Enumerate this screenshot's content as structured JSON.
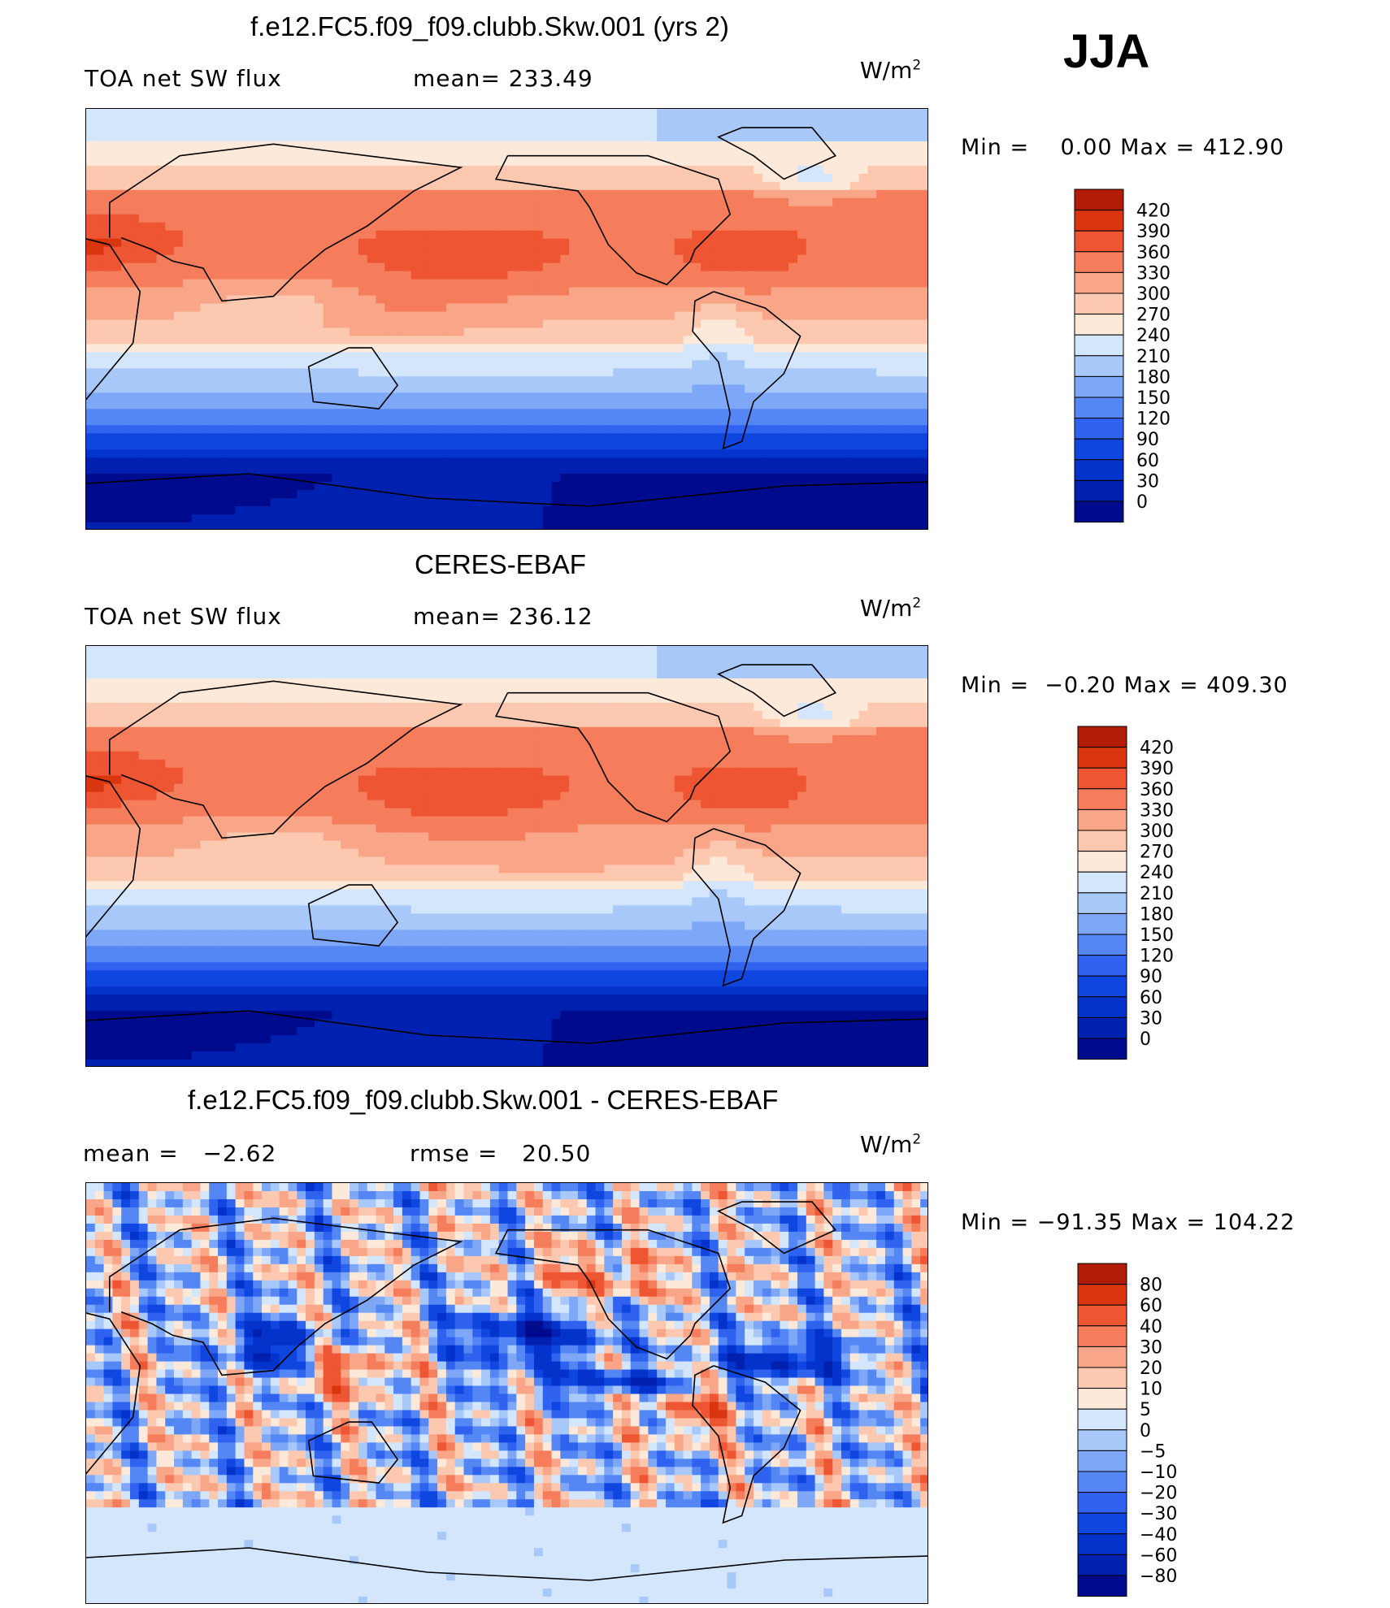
{
  "season": "JJA",
  "units": "W/m",
  "units_sup": "2",
  "panels": [
    {
      "title": "f.e12.FC5.f09_f09.clubb.Skw.001 (yrs 2)",
      "left_label": "TOA net SW flux",
      "center_label": "mean= 233.49",
      "minmax": "Min =    0.00 Max = 412.90",
      "colorbar_ticks": [
        "420",
        "390",
        "360",
        "330",
        "300",
        "270",
        "240",
        "210",
        "180",
        "150",
        "120",
        "90",
        "60",
        "30",
        "0"
      ]
    },
    {
      "title": "CERES-EBAF",
      "left_label": "TOA net SW flux",
      "center_label": "mean= 236.12",
      "minmax": "Min =  −0.20 Max = 409.30",
      "colorbar_ticks": [
        "420",
        "390",
        "360",
        "330",
        "300",
        "270",
        "240",
        "210",
        "180",
        "150",
        "120",
        "90",
        "60",
        "30",
        "0"
      ]
    },
    {
      "title": "f.e12.FC5.f09_f09.clubb.Skw.001 - CERES-EBAF",
      "left_label": "mean =   −2.62",
      "center_label": "rmse =   20.50",
      "minmax": "Min = −91.35 Max = 104.22",
      "colorbar_ticks": [
        "80",
        "60",
        "40",
        "30",
        "20",
        "10",
        "5",
        "0",
        "−5",
        "−10",
        "−20",
        "−30",
        "−40",
        "−60",
        "−80"
      ]
    }
  ],
  "chart_data": [
    {
      "type": "heatmap",
      "title": "f.e12.FC5.f09_f09.clubb.Skw.001 (yrs 2)",
      "variable": "TOA net SW flux",
      "units": "W/m2",
      "mean": 233.49,
      "min": 0.0,
      "max": 412.9,
      "levels": [
        0,
        30,
        60,
        90,
        120,
        150,
        180,
        210,
        240,
        270,
        300,
        330,
        360,
        390,
        420
      ],
      "colors": [
        "#000a8c",
        "#0021b0",
        "#0433cc",
        "#1046e0",
        "#2f62ee",
        "#5487f4",
        "#7ea8f7",
        "#a9c8fa",
        "#d4e6fc",
        "#fde9d9",
        "#fcc9b0",
        "#f9a587",
        "#f57d5c",
        "#ee5532",
        "#d9360f",
        "#b01c05",
        "#800000"
      ]
    },
    {
      "type": "heatmap",
      "title": "CERES-EBAF",
      "variable": "TOA net SW flux",
      "units": "W/m2",
      "mean": 236.12,
      "min": -0.2,
      "max": 409.3,
      "levels": [
        0,
        30,
        60,
        90,
        120,
        150,
        180,
        210,
        240,
        270,
        300,
        330,
        360,
        390,
        420
      ],
      "colors": [
        "#000a8c",
        "#0021b0",
        "#0433cc",
        "#1046e0",
        "#2f62ee",
        "#5487f4",
        "#7ea8f7",
        "#a9c8fa",
        "#d4e6fc",
        "#fde9d9",
        "#fcc9b0",
        "#f9a587",
        "#f57d5c",
        "#ee5532",
        "#d9360f",
        "#b01c05",
        "#800000"
      ]
    },
    {
      "type": "heatmap",
      "title": "f.e12.FC5.f09_f09.clubb.Skw.001 - CERES-EBAF",
      "units": "W/m2",
      "mean": -2.62,
      "rmse": 20.5,
      "min": -91.35,
      "max": 104.22,
      "levels": [
        -80,
        -60,
        -40,
        -30,
        -20,
        -10,
        -5,
        0,
        5,
        10,
        20,
        30,
        40,
        60,
        80
      ],
      "colors": [
        "#000a8c",
        "#0021b0",
        "#0433cc",
        "#1046e0",
        "#2f62ee",
        "#5487f4",
        "#7ea8f7",
        "#a9c8fa",
        "#d4e6fc",
        "#fde9d9",
        "#fcc9b0",
        "#f9a587",
        "#f57d5c",
        "#ee5532",
        "#d9360f",
        "#b01c05",
        "#800000"
      ]
    }
  ]
}
